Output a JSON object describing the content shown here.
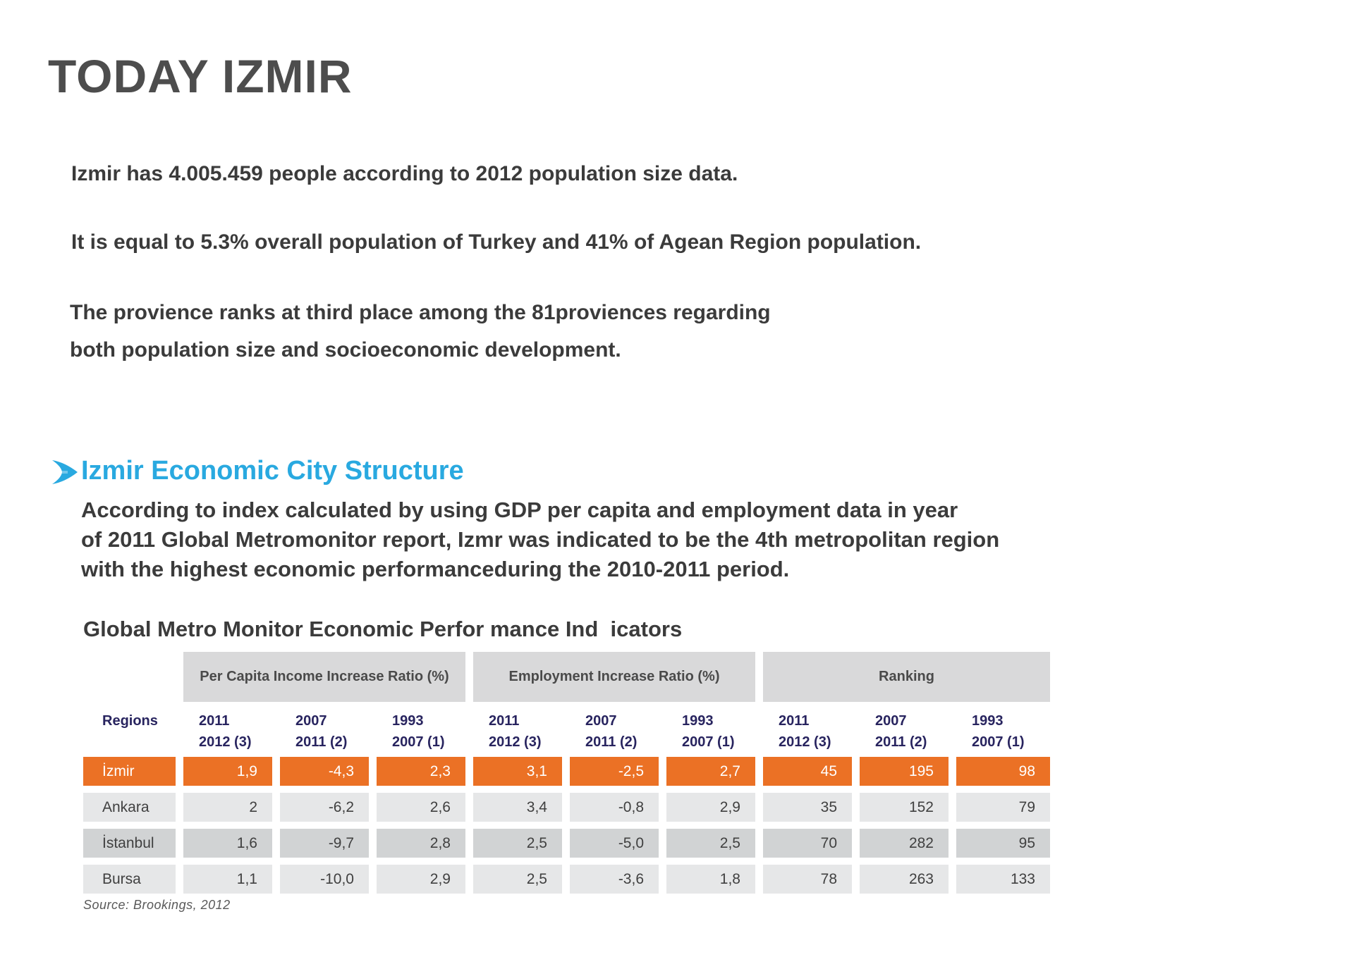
{
  "title": "TODAY IZMIR",
  "intro": {
    "p1": "Izmir has 4.005.459 people according to 2012 population size data.",
    "p2": "It is equal to 5.3% overall population of Turkey and 41% of Agean Region population.",
    "p3": [
      "The provience ranks at third place among the 81proviences regarding",
      "both population size and socioeconomic development."
    ]
  },
  "section": {
    "icon": "arrow-right-icon",
    "heading": "Izmir Economic City Structure",
    "lines": [
      "According to index calculated by using GDP per capita and employment data in year",
      "of 2011 Global Metromonitor report, Izmr was indicated to be the 4th metropolitan region",
      "with the highest economic performanceduring the 2010-2011 period."
    ]
  },
  "table": {
    "title": "Global Metro Monitor Economic Perfor mance Ind  icators",
    "groups": [
      "Per Capita Income Increase Ratio (%)",
      "Employment Increase Ratio (%)",
      "Ranking"
    ],
    "regions_label": "Regions",
    "columns": [
      {
        "line1": "2011",
        "line2": "2012 (3)"
      },
      {
        "line1": "2007",
        "line2": "2011 (2)"
      },
      {
        "line1": "1993",
        "line2": "2007 (1)"
      },
      {
        "line1": "2011",
        "line2": "2012 (3)"
      },
      {
        "line1": "2007",
        "line2": "2011 (2)"
      },
      {
        "line1": "1993",
        "line2": "2007 (1)"
      },
      {
        "line1": "2011",
        "line2": "2012 (3)"
      },
      {
        "line1": "2007",
        "line2": "2011 (2)"
      },
      {
        "line1": "1993",
        "line2": "2007 (1)"
      }
    ],
    "rows": [
      {
        "region": "İzmir",
        "values": [
          "1,9",
          "-4,3",
          "2,3",
          "3,1",
          "-2,5",
          "2,7",
          "45",
          "195",
          "98"
        ]
      },
      {
        "region": "Ankara",
        "values": [
          "2",
          "-6,2",
          "2,6",
          "3,4",
          "-0,8",
          "2,9",
          "35",
          "152",
          "79"
        ]
      },
      {
        "region": "İstanbul",
        "values": [
          "1,6",
          "-9,7",
          "2,8",
          "2,5",
          "-5,0",
          "2,5",
          "70",
          "282",
          "95"
        ]
      },
      {
        "region": "Bursa",
        "values": [
          "1,1",
          "-10,0",
          "2,9",
          "2,5",
          "-3,6",
          "1,8",
          "78",
          "263",
          "133"
        ]
      }
    ],
    "source": "Source: Brookings, 2012"
  },
  "colors": {
    "accent": "#29a9e0",
    "highlight": "#eb7125",
    "navy": "#28245f",
    "row_light": "#e6e7e8",
    "row_dark": "#d1d3d4",
    "group_gray": "#d9d9da"
  }
}
